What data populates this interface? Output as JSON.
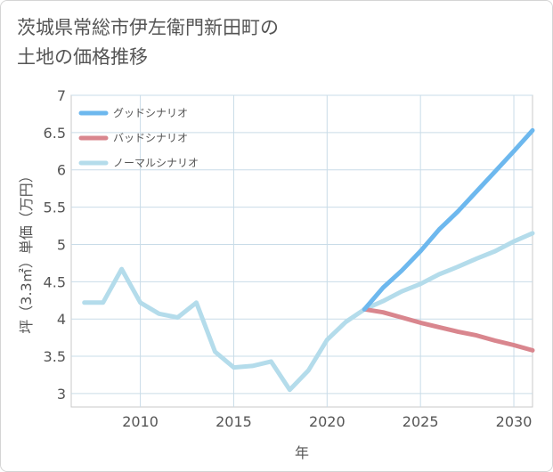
{
  "chart_data": {
    "type": "line",
    "title_lines": [
      "茨城県常総市伊左衛門新田町の",
      "土地の価格推移"
    ],
    "xlabel": "年",
    "ylabel": "坪（3.3㎡）単価（万円）",
    "xlim": [
      2006.3,
      2031
    ],
    "ylim": [
      2.82,
      7
    ],
    "x_ticks": [
      2010,
      2015,
      2020,
      2025,
      2030
    ],
    "y_ticks": [
      3,
      3.5,
      4,
      4.5,
      5,
      5.5,
      6,
      6.5,
      7
    ],
    "legend": [
      "グッドシナリオ",
      "バッドシナリオ",
      "ノーマルシナリオ"
    ],
    "series": [
      {
        "name": "グッドシナリオ",
        "color": "#6db8ee",
        "x": [
          2022,
          2023,
          2024,
          2025,
          2026,
          2027,
          2028,
          2029,
          2030,
          2031
        ],
        "y": [
          4.13,
          4.42,
          4.65,
          4.91,
          5.2,
          5.44,
          5.71,
          5.98,
          6.25,
          6.53
        ]
      },
      {
        "name": "バッドシナリオ",
        "color": "#d9868e",
        "x": [
          2022,
          2023,
          2024,
          2025,
          2026,
          2027,
          2028,
          2029,
          2030,
          2031
        ],
        "y": [
          4.13,
          4.09,
          4.02,
          3.95,
          3.89,
          3.83,
          3.78,
          3.71,
          3.65,
          3.58
        ]
      },
      {
        "name": "ノーマルシナリオ",
        "color": "#b4dceb",
        "x": [
          2007,
          2008,
          2009,
          2010,
          2011,
          2012,
          2013,
          2014,
          2015,
          2016,
          2017,
          2018,
          2019,
          2020,
          2021,
          2022,
          2023,
          2024,
          2025,
          2026,
          2027,
          2028,
          2029,
          2030,
          2031
        ],
        "y": [
          4.22,
          4.22,
          4.67,
          4.22,
          4.07,
          4.02,
          4.22,
          3.56,
          3.35,
          3.37,
          3.43,
          3.05,
          3.31,
          3.72,
          3.96,
          4.13,
          4.24,
          4.37,
          4.47,
          4.6,
          4.7,
          4.81,
          4.91,
          5.04,
          5.15
        ]
      }
    ]
  }
}
